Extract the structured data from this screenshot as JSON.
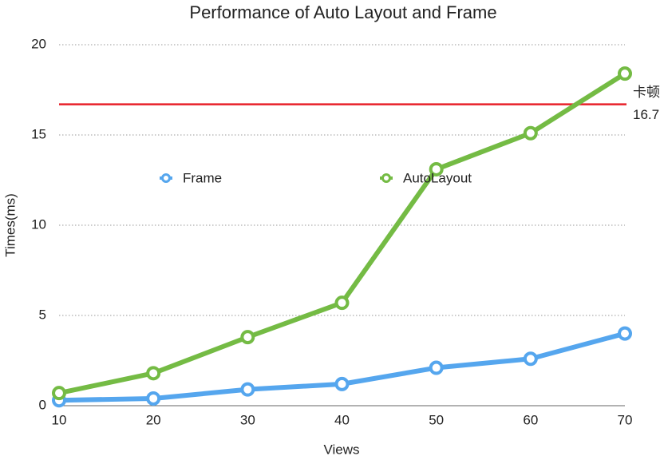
{
  "chart_data": {
    "type": "line",
    "title": "Performance of Auto Layout  and Frame",
    "x_label": "Views",
    "y_label": "Times(ms)",
    "x": [
      10,
      20,
      30,
      40,
      50,
      60,
      70
    ],
    "series": [
      {
        "name": "Frame",
        "color": "#55a6ee",
        "values": [
          0.3,
          0.4,
          0.9,
          1.2,
          2.1,
          2.6,
          4.0
        ]
      },
      {
        "name": "AutoLayout",
        "color": "#74bb44",
        "values": [
          0.7,
          1.8,
          3.8,
          5.7,
          13.1,
          15.1,
          18.4
        ]
      }
    ],
    "xlim": [
      10,
      70
    ],
    "xticks": [
      10,
      20,
      30,
      40,
      50,
      60,
      70
    ],
    "ylim": [
      0,
      20
    ],
    "yticks": [
      0,
      5,
      10,
      15,
      20
    ],
    "grid": true,
    "reference_line": {
      "value": 16.7,
      "label": "卡顿",
      "color": "#e8202a"
    }
  }
}
